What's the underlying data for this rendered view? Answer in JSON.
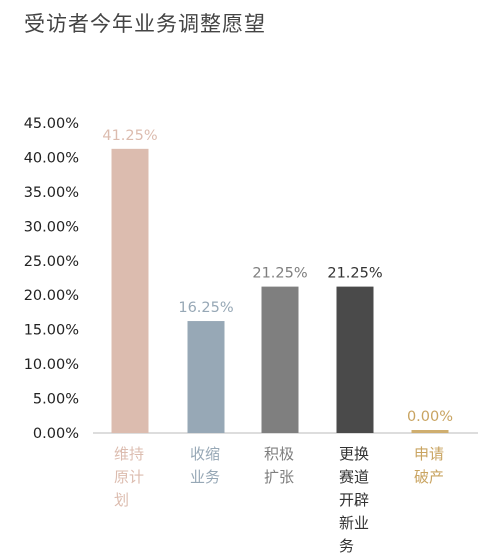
{
  "title": "受访者今年业务调整愿望",
  "chart_data": {
    "type": "bar",
    "title": "受访者今年业务调整愿望",
    "xlabel": "",
    "ylabel": "",
    "ylim": [
      0,
      45
    ],
    "y_ticks": [
      "0.00%",
      "5.00%",
      "10.00%",
      "15.00%",
      "20.00%",
      "25.00%",
      "30.00%",
      "35.00%",
      "40.00%",
      "45.00%"
    ],
    "categories": [
      "维持原计划",
      "收缩业务",
      "积极扩张",
      "更换赛道开辟新业务",
      "申请破产"
    ],
    "category_lines": [
      [
        "维持",
        "原计",
        "划"
      ],
      [
        "收缩",
        "业务"
      ],
      [
        "积极",
        "扩张"
      ],
      [
        "更换",
        "赛道",
        "开辟",
        "新业",
        "务"
      ],
      [
        "申请",
        "破产"
      ]
    ],
    "values": [
      41.25,
      16.25,
      21.25,
      21.25,
      0.0
    ],
    "value_labels": [
      "41.25%",
      "16.25%",
      "21.25%",
      "21.25%",
      "0.00%"
    ],
    "colors": [
      "#dcbcaf",
      "#97a8b6",
      "#7f7f7f",
      "#4a4a4a",
      "#cfae6f"
    ],
    "label_colors": [
      "#dcbcaf",
      "#97a8b6",
      "#7f7f7f",
      "#333333",
      "#c9a461"
    ],
    "grid": false,
    "legend": "none"
  }
}
